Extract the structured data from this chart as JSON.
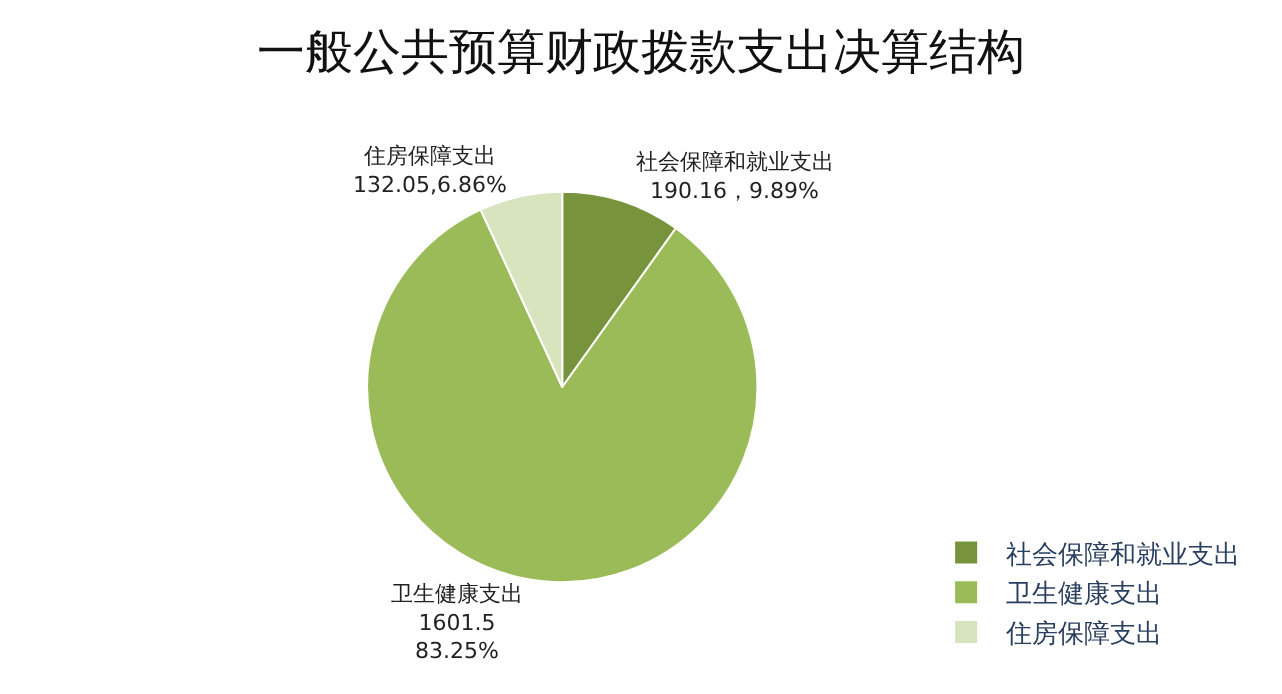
{
  "chart_data": {
    "type": "pie",
    "title": "一般公共预算财政拨款支出决算结构",
    "categories": [
      "社会保障和就业支出",
      "卫生健康支出",
      "住房保障支出"
    ],
    "values": [
      190.16,
      1601.5,
      132.05
    ],
    "value_labels": [
      "190.16，9.89%",
      "1601.5\n83.25%",
      "132.05,6.86%"
    ],
    "colors": [
      "#77933c",
      "#9bbb59",
      "#d7e4bd"
    ],
    "legend": "bottom right"
  }
}
